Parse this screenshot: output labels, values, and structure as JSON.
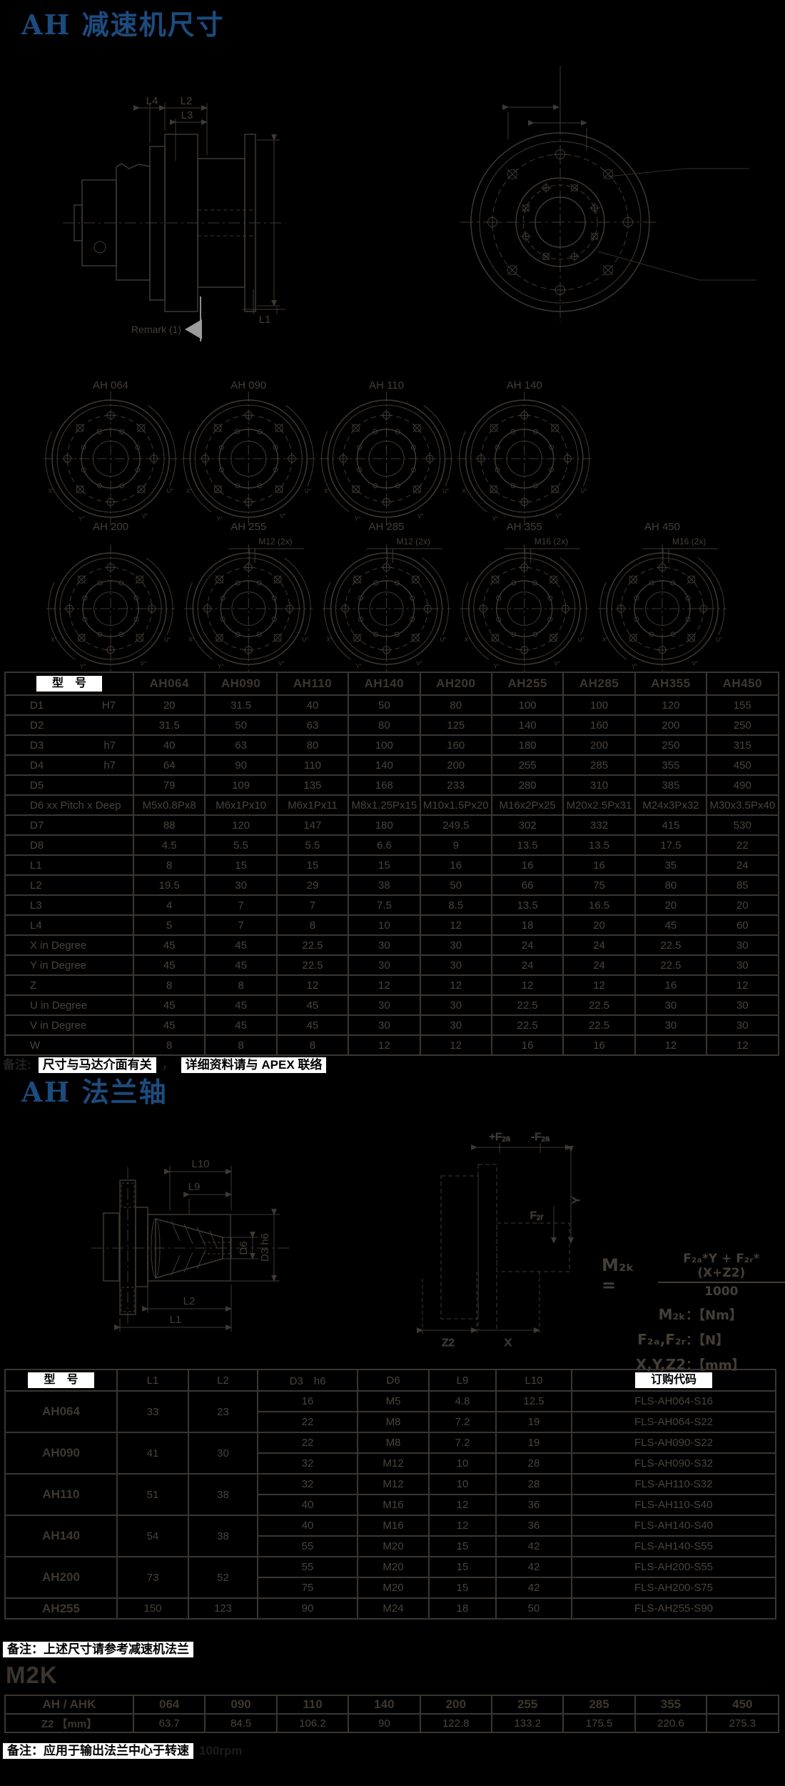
{
  "colors": {
    "accent_blue": "#1c4b7e",
    "line_gray": "#3f3933",
    "text_gray": "#4a433c",
    "highlight": "#ffffff"
  },
  "section1": {
    "title": "AH 减速机尺寸",
    "drawing": {
      "l4": "L4",
      "l2": "L2",
      "l3": "L3",
      "l1": "L1",
      "remark": "Remark (1)"
    },
    "variants_row1": [
      {
        "name": "AH 064"
      },
      {
        "name": "AH 090"
      },
      {
        "name": "AH 110"
      },
      {
        "name": "AH 140"
      }
    ],
    "variants_row2": [
      {
        "name": "AH 200"
      },
      {
        "name": "AH 255",
        "screw": "M12 (2x)"
      },
      {
        "name": "AH 285",
        "screw": "M12 (2x)"
      },
      {
        "name": "AH 355",
        "screw": "M16 (2x)"
      },
      {
        "name": "AH 450",
        "screw": "M16 (2x)"
      }
    ],
    "angle_labels": [
      "X°",
      "Y°",
      "U°",
      "V°"
    ],
    "table": {
      "header_label": "型　号",
      "columns": [
        "AH064",
        "AH090",
        "AH110",
        "AH140",
        "AH200",
        "AH255",
        "AH285",
        "AH355",
        "AH450"
      ],
      "rows": [
        {
          "label": "D1",
          "tol": "H7",
          "values": [
            "20",
            "31.5",
            "40",
            "50",
            "80",
            "100",
            "100",
            "120",
            "155"
          ]
        },
        {
          "label": "D2",
          "tol": "",
          "values": [
            "31.5",
            "50",
            "63",
            "80",
            "125",
            "140",
            "160",
            "200",
            "250"
          ]
        },
        {
          "label": "D3",
          "tol": "h7",
          "values": [
            "40",
            "63",
            "80",
            "100",
            "160",
            "180",
            "200",
            "250",
            "315"
          ]
        },
        {
          "label": "D4",
          "tol": "h7",
          "values": [
            "64",
            "90",
            "110",
            "140",
            "200",
            "255",
            "285",
            "355",
            "450"
          ]
        },
        {
          "label": "D5",
          "tol": "",
          "values": [
            "79",
            "109",
            "135",
            "168",
            "233",
            "280",
            "310",
            "385",
            "490"
          ]
        },
        {
          "label": "D6 xx Pitch x Deep",
          "tol": "",
          "values": [
            "M5x0.8Px8",
            "M6x1Px10",
            "M6x1Px11",
            "M8x1.25Px15",
            "M10x1.5Px20",
            "M16x2Px25",
            "M20x2.5Px31",
            "M24x3Px32",
            "M30x3.5Px40"
          ]
        },
        {
          "label": "D7",
          "tol": "",
          "values": [
            "88",
            "120",
            "147",
            "180",
            "249.5",
            "302",
            "332",
            "415",
            "530"
          ]
        },
        {
          "label": "D8",
          "tol": "",
          "values": [
            "4.5",
            "5.5",
            "5.5",
            "6.6",
            "9",
            "13.5",
            "13.5",
            "17.5",
            "22"
          ]
        },
        {
          "label": "L1",
          "tol": "",
          "values": [
            "8",
            "15",
            "15",
            "15",
            "16",
            "16",
            "16",
            "35",
            "24"
          ]
        },
        {
          "label": "L2",
          "tol": "",
          "values": [
            "19.5",
            "30",
            "29",
            "38",
            "50",
            "66",
            "75",
            "80",
            "85"
          ]
        },
        {
          "label": "L3",
          "tol": "",
          "values": [
            "4",
            "7",
            "7",
            "7.5",
            "8.5",
            "13.5",
            "16.5",
            "20",
            "20"
          ]
        },
        {
          "label": "L4",
          "tol": "",
          "values": [
            "5",
            "7",
            "8",
            "10",
            "12",
            "18",
            "20",
            "45",
            "60"
          ]
        },
        {
          "label": "X in Degree",
          "tol": "",
          "values": [
            "45",
            "45",
            "22.5",
            "30",
            "30",
            "24",
            "24",
            "22.5",
            "30"
          ]
        },
        {
          "label": "Y in Degree",
          "tol": "",
          "values": [
            "45",
            "45",
            "22.5",
            "30",
            "30",
            "24",
            "24",
            "22.5",
            "30"
          ]
        },
        {
          "label": "Z",
          "tol": "",
          "values": [
            "8",
            "8",
            "12",
            "12",
            "12",
            "12",
            "12",
            "16",
            "12"
          ]
        },
        {
          "label": "U in Degree",
          "tol": "",
          "values": [
            "45",
            "45",
            "45",
            "30",
            "30",
            "22.5",
            "22.5",
            "30",
            "30"
          ]
        },
        {
          "label": "V in Degree",
          "tol": "",
          "values": [
            "45",
            "45",
            "45",
            "30",
            "30",
            "22.5",
            "22.5",
            "30",
            "30"
          ]
        },
        {
          "label": "W",
          "tol": "",
          "values": [
            "8",
            "8",
            "8",
            "12",
            "12",
            "16",
            "16",
            "12",
            "12"
          ]
        }
      ]
    },
    "note_prefix": "备注:",
    "note_a": "尺寸与马达介面有关",
    "note_sep": "，",
    "note_b": "详细资料请与 APEX 联络"
  },
  "section2": {
    "title": "AH 法兰轴",
    "drawing": {
      "l10": "L10",
      "l9": "L9",
      "d6": "D6",
      "d3": "D3 h6",
      "l2": "L2",
      "l1": "L1",
      "z2": "Z2",
      "x": "X",
      "y": "Y",
      "f2a_plus": "+F₂ₐ",
      "f2a_minus": "-F₂ₐ",
      "f2r": "F₂ᵣ"
    },
    "formula": {
      "lhs": "M₂ₖ =",
      "num": "F₂ₐ*Y + F₂ᵣ* (X+Z2)",
      "den": "1000",
      "u1_label": "M₂ₖ",
      "u1_value": "：【Nm】",
      "u2_label": "F₂ₐ,F₂ᵣ",
      "u2_value": "：【N】",
      "u3_label": "X,Y,Z2",
      "u3_value": "：【mm】"
    },
    "table": {
      "header_label": "型　号",
      "col_l1": "L1",
      "col_l2": "L2",
      "col_d3": "D3　h6",
      "col_d6": "D6",
      "col_l9": "L9",
      "col_l10": "L10",
      "code_header": "订购代码",
      "groups": [
        {
          "model": "AH064",
          "l1": "33",
          "l2": "23",
          "rows": [
            {
              "d3": "16",
              "d6": "M5",
              "l9": "4.8",
              "l10": "12.5",
              "code": "FLS-AH064-S16"
            },
            {
              "d3": "22",
              "d6": "M8",
              "l9": "7.2",
              "l10": "19",
              "code": "FLS-AH064-S22"
            }
          ]
        },
        {
          "model": "AH090",
          "l1": "41",
          "l2": "30",
          "rows": [
            {
              "d3": "22",
              "d6": "M8",
              "l9": "7.2",
              "l10": "19",
              "code": "FLS-AH090-S22"
            },
            {
              "d3": "32",
              "d6": "M12",
              "l9": "10",
              "l10": "28",
              "code": "FLS-AH090-S32"
            }
          ]
        },
        {
          "model": "AH110",
          "l1": "51",
          "l2": "38",
          "rows": [
            {
              "d3": "32",
              "d6": "M12",
              "l9": "10",
              "l10": "28",
              "code": "FLS-AH110-S32"
            },
            {
              "d3": "40",
              "d6": "M16",
              "l9": "12",
              "l10": "36",
              "code": "FLS-AH110-S40"
            }
          ]
        },
        {
          "model": "AH140",
          "l1": "54",
          "l2": "38",
          "rows": [
            {
              "d3": "40",
              "d6": "M16",
              "l9": "12",
              "l10": "36",
              "code": "FLS-AH140-S40"
            },
            {
              "d3": "55",
              "d6": "M20",
              "l9": "15",
              "l10": "42",
              "code": "FLS-AH140-S55"
            }
          ]
        },
        {
          "model": "AH200",
          "l1": "73",
          "l2": "52",
          "rows": [
            {
              "d3": "55",
              "d6": "M20",
              "l9": "15",
              "l10": "42",
              "code": "FLS-AH200-S55"
            },
            {
              "d3": "75",
              "d6": "M20",
              "l9": "15",
              "l10": "42",
              "code": "FLS-AH200-S75"
            }
          ]
        },
        {
          "model": "AH255",
          "l1": "150",
          "l2": "123",
          "rows": [
            {
              "d3": "90",
              "d6": "M24",
              "l9": "18",
              "l10": "50",
              "code": "FLS-AH255-S90"
            }
          ]
        }
      ]
    },
    "note": "备注：上述尺寸请参考减速机法兰"
  },
  "section3": {
    "heading": "M2K",
    "table": {
      "row1_label": "AH / AHK",
      "row2_label": "Z2 【mm】",
      "models": [
        "064",
        "090",
        "110",
        "140",
        "200",
        "255",
        "285",
        "355",
        "450"
      ],
      "z2_values": [
        "63.7",
        "84.5",
        "106.2",
        "90",
        "122.8",
        "133.2",
        "175.5",
        "220.6",
        "275.3"
      ]
    },
    "note": "备注：应用于输出法兰中心于转速",
    "note_tail": "100rpm"
  }
}
